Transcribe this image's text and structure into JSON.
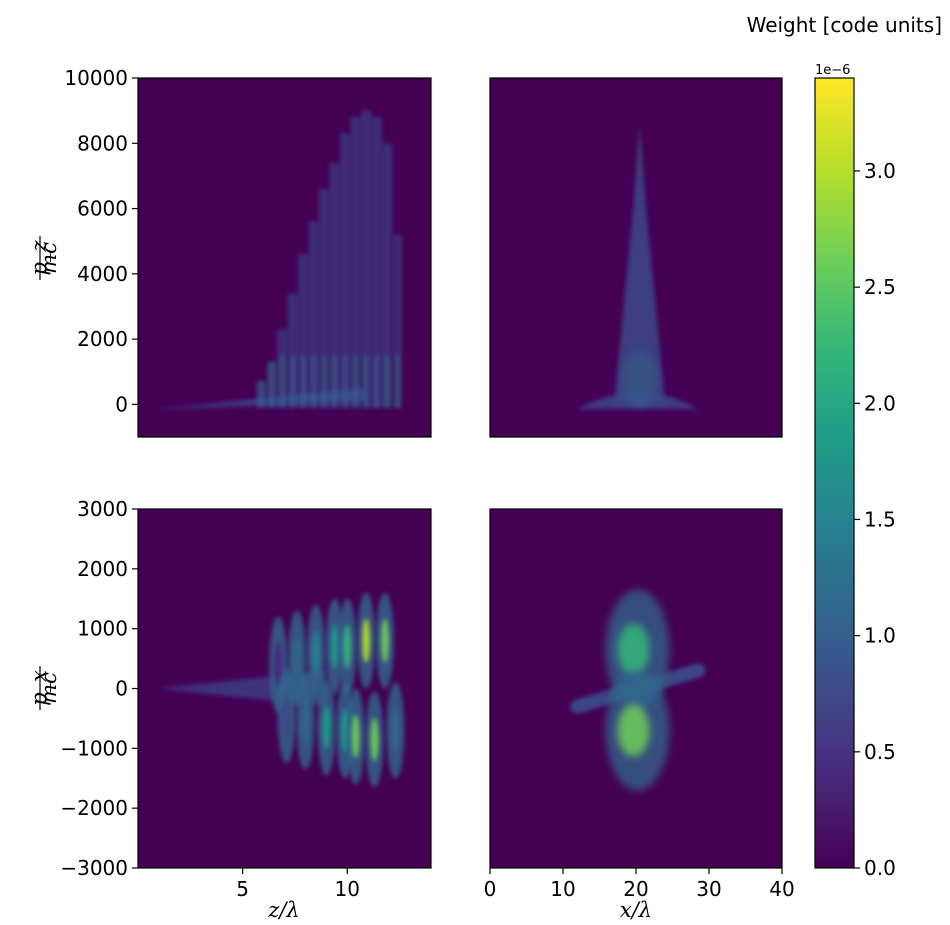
{
  "chart_data": [
    {
      "id": "top-left",
      "type": "heatmap",
      "xlabel": "",
      "ylabel": {
        "numerator": "p_z",
        "denominator": "mc"
      },
      "xlim": [
        0,
        14
      ],
      "ylim": [
        -1000,
        10000
      ],
      "x_ticks": [],
      "y_ticks": [
        0,
        2000,
        4000,
        6000,
        8000,
        10000
      ],
      "y_tick_labels": [
        "0",
        "2000",
        "4000",
        "6000",
        "8000",
        "10000"
      ],
      "features": {
        "base_streak": {
          "x": [
            0.8,
            10.8
          ],
          "y": [
            -160,
            360
          ]
        },
        "vertical_bunches": [
          {
            "x": 5.9,
            "ymax": 700,
            "w": 0.5
          },
          {
            "x": 6.4,
            "ymax": 1300,
            "w": 0.5
          },
          {
            "x": 6.9,
            "ymax": 2300,
            "w": 0.5
          },
          {
            "x": 7.4,
            "ymax": 3400,
            "w": 0.5
          },
          {
            "x": 7.9,
            "ymax": 4600,
            "w": 0.5
          },
          {
            "x": 8.4,
            "ymax": 5600,
            "w": 0.5
          },
          {
            "x": 8.9,
            "ymax": 6600,
            "w": 0.5
          },
          {
            "x": 9.4,
            "ymax": 7400,
            "w": 0.5
          },
          {
            "x": 9.9,
            "ymax": 8300,
            "w": 0.5
          },
          {
            "x": 10.4,
            "ymax": 8800,
            "w": 0.5
          },
          {
            "x": 10.9,
            "ymax": 9000,
            "w": 0.5
          },
          {
            "x": 11.4,
            "ymax": 8800,
            "w": 0.5
          },
          {
            "x": 11.9,
            "ymax": 8000,
            "w": 0.5
          },
          {
            "x": 12.4,
            "ymax": 5200,
            "w": 0.4
          }
        ]
      }
    },
    {
      "id": "top-right",
      "type": "heatmap",
      "xlabel": "",
      "ylabel": "",
      "xlim": [
        0,
        40
      ],
      "ylim": [
        -1000,
        10000
      ],
      "x_ticks": [],
      "y_ticks": [],
      "features": {
        "spike": {
          "x_center": 20.5,
          "y_base": 0,
          "y_tip": 8600,
          "half_width_base": 3.5
        },
        "foot": {
          "x": [
            12,
            28.5
          ],
          "y": [
            -150,
            600
          ]
        }
      }
    },
    {
      "id": "bottom-left",
      "type": "heatmap",
      "xlabel": "z/λ",
      "ylabel": {
        "numerator": "p_x",
        "denominator": "mc"
      },
      "xlim": [
        0,
        14
      ],
      "ylim": [
        -3000,
        3000
      ],
      "x_ticks": [
        5,
        10
      ],
      "x_tick_labels": [
        "5",
        "10"
      ],
      "y_ticks": [
        -3000,
        -2000,
        -1000,
        0,
        1000,
        2000,
        3000
      ],
      "y_tick_labels": [
        "−3000",
        "−2000",
        "−1000",
        "0",
        "1000",
        "2000",
        "3000"
      ],
      "features": {
        "center_streak": {
          "x": [
            1,
            9
          ],
          "y": 0,
          "spread": 150
        },
        "blobs": [
          {
            "x": 6.7,
            "y": 400,
            "a": 0.15
          },
          {
            "x": 7.1,
            "y": -450,
            "a": 0.2
          },
          {
            "x": 7.6,
            "y": 500,
            "a": 0.3
          },
          {
            "x": 8.0,
            "y": -550,
            "a": 0.35
          },
          {
            "x": 8.5,
            "y": 600,
            "a": 0.4
          },
          {
            "x": 9.0,
            "y": -650,
            "a": 0.5
          },
          {
            "x": 9.4,
            "y": 700,
            "a": 0.55
          },
          {
            "x": 9.9,
            "y": -700,
            "a": 0.6
          },
          {
            "x": 10.0,
            "y": 700,
            "a": 0.7
          },
          {
            "x": 10.4,
            "y": -800,
            "a": 0.75
          },
          {
            "x": 10.9,
            "y": 800,
            "a": 0.85
          },
          {
            "x": 11.3,
            "y": -850,
            "a": 0.8
          },
          {
            "x": 11.8,
            "y": 800,
            "a": 0.75
          },
          {
            "x": 12.3,
            "y": -700,
            "a": 0.3
          }
        ]
      }
    },
    {
      "id": "bottom-right",
      "type": "heatmap",
      "xlabel": "x/λ",
      "ylabel": "",
      "xlim": [
        0,
        40
      ],
      "ylim": [
        -3000,
        3000
      ],
      "x_ticks": [
        0,
        10,
        20,
        30,
        40
      ],
      "x_tick_labels": [
        "0",
        "10",
        "20",
        "30",
        "40"
      ],
      "y_ticks": [],
      "features": {
        "upper_lobe": {
          "x": 20.2,
          "y": 650,
          "a": 0.7
        },
        "lower_lobe": {
          "x": 20.2,
          "y": -700,
          "a": 0.75
        },
        "diagonal_band": {
          "x": [
            12,
            28.5
          ],
          "y": [
            -300,
            300
          ]
        }
      }
    }
  ],
  "colorbar": {
    "title": "Weight [code units]",
    "exponent_label": "1e−6",
    "min": 0,
    "max": 3.4,
    "ticks": [
      0,
      0.5,
      1.0,
      1.5,
      2.0,
      2.5,
      3.0
    ],
    "tick_labels": [
      "0.0",
      "0.5",
      "1.0",
      "1.5",
      "2.0",
      "2.5",
      "3.0"
    ],
    "colormap": "viridis"
  },
  "colors": {
    "background": "#440154",
    "viridis": [
      "#440154",
      "#482878",
      "#3e4989",
      "#31688e",
      "#26828e",
      "#1f9e89",
      "#35b779",
      "#6ece58",
      "#b5de2b",
      "#fde725"
    ]
  }
}
